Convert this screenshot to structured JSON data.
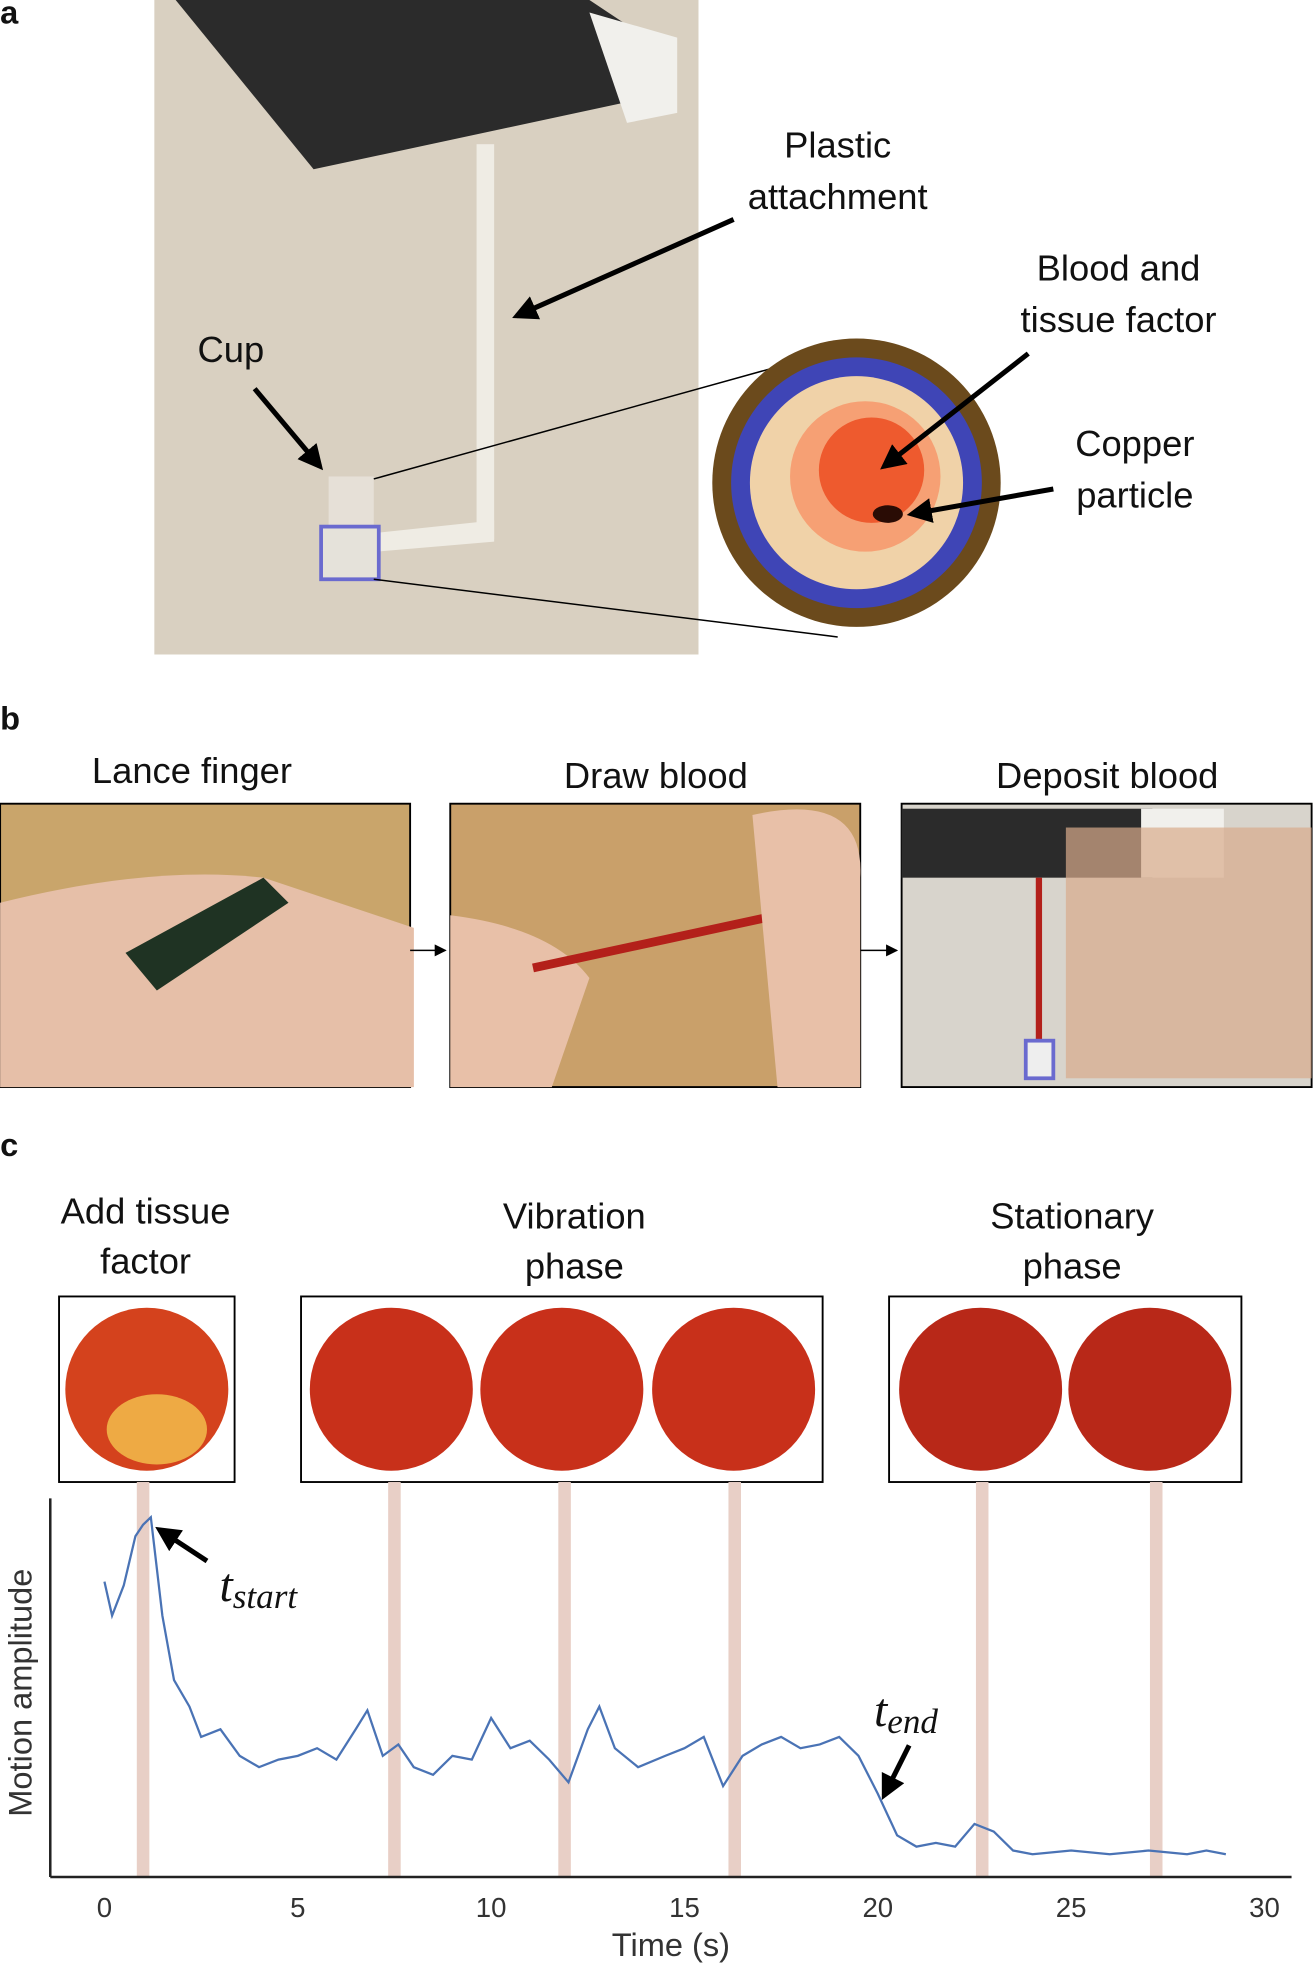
{
  "panel_a": {
    "letter": "a",
    "labels": [
      [
        "Plastic",
        "attachment"
      ],
      [
        "Blood and",
        "tissue factor"
      ],
      [
        "Copper",
        "particle"
      ],
      [
        "Cup"
      ]
    ]
  },
  "panel_b": {
    "letter": "b",
    "steps": [
      "Lance finger",
      "Draw blood",
      "Deposit blood"
    ]
  },
  "panel_c": {
    "letter": "c",
    "phases": [
      [
        "Add tissue",
        "factor"
      ],
      [
        "Vibration",
        "phase"
      ],
      [
        "Stationary",
        "phase"
      ]
    ]
  },
  "chart_data": {
    "type": "line",
    "xlabel": "Time (s)",
    "ylabel": "Motion amplitude",
    "color": "#4a73b5",
    "x": [
      0,
      0.2,
      0.5,
      0.8,
      1.0,
      1.2,
      1.5,
      1.8,
      2.2,
      2.5,
      3,
      3.5,
      4,
      4.5,
      5,
      5.5,
      6,
      6.5,
      6.8,
      7.2,
      7.6,
      8,
      8.5,
      9,
      9.5,
      10,
      10.5,
      11,
      11.5,
      12,
      12.5,
      12.8,
      13.2,
      13.8,
      14.5,
      15,
      15.5,
      16,
      16.5,
      17,
      17.5,
      18,
      18.5,
      19,
      19.5,
      20,
      20.5,
      21,
      21.5,
      22,
      22.5,
      23,
      23.5,
      24,
      25,
      26,
      27,
      28,
      28.5,
      29
    ],
    "values": [
      0.78,
      0.69,
      0.77,
      0.9,
      0.93,
      0.95,
      0.69,
      0.52,
      0.45,
      0.37,
      0.39,
      0.32,
      0.29,
      0.31,
      0.32,
      0.34,
      0.31,
      0.39,
      0.44,
      0.32,
      0.35,
      0.29,
      0.27,
      0.32,
      0.31,
      0.42,
      0.34,
      0.36,
      0.31,
      0.25,
      0.39,
      0.45,
      0.34,
      0.29,
      0.32,
      0.34,
      0.37,
      0.24,
      0.32,
      0.35,
      0.37,
      0.34,
      0.35,
      0.37,
      0.32,
      0.22,
      0.11,
      0.08,
      0.09,
      0.08,
      0.14,
      0.12,
      0.07,
      0.06,
      0.07,
      0.06,
      0.07,
      0.06,
      0.07,
      0.06
    ],
    "xlim": [
      -1.4,
      30.7
    ],
    "ylim": [
      0,
      1
    ],
    "xticks": [
      0,
      5,
      10,
      15,
      20,
      25,
      30
    ],
    "highlights": [
      1.0,
      7.5,
      11.9,
      16.3,
      22.7,
      27.2
    ],
    "highlight_color": "#e8cfc6",
    "annotations": [
      {
        "text": "t",
        "subscript": "start"
      },
      {
        "text": "t",
        "subscript": "end"
      }
    ]
  }
}
